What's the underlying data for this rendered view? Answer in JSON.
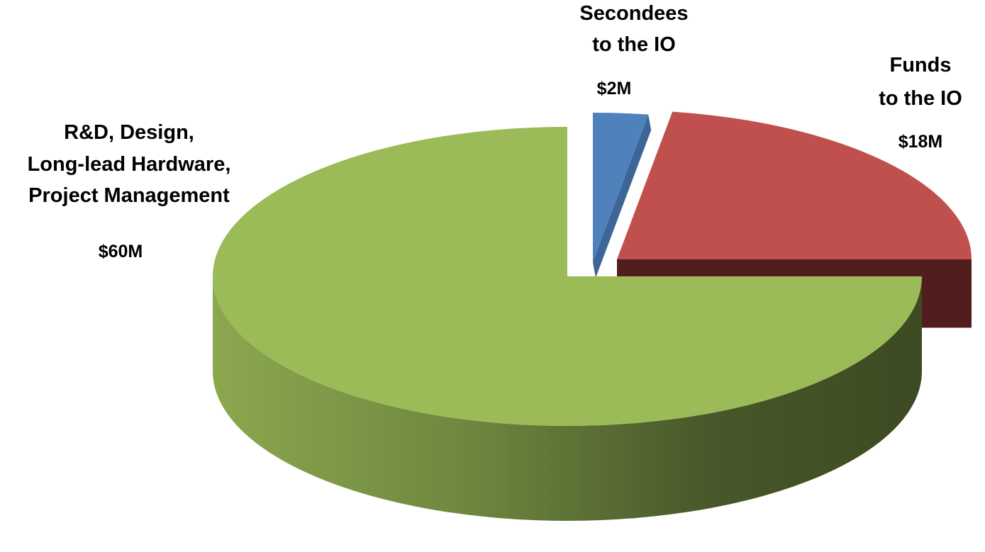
{
  "chart_data": {
    "type": "pie",
    "title": "",
    "unit": "$M",
    "exploded": true,
    "three_d": true,
    "slices": [
      {
        "name_lines": [
          "Secondees",
          "to the IO"
        ],
        "value": 2,
        "value_label": "$2M",
        "color": "#4f81bd"
      },
      {
        "name_lines": [
          "Funds",
          "to the IO"
        ],
        "value": 18,
        "value_label": "$18M",
        "color": "#c0504d"
      },
      {
        "name_lines": [
          "R&D, Design,",
          "Long-lead Hardware,",
          "Project Management"
        ],
        "value": 60,
        "value_label": "$60M",
        "color": "#9bbb59"
      }
    ]
  }
}
